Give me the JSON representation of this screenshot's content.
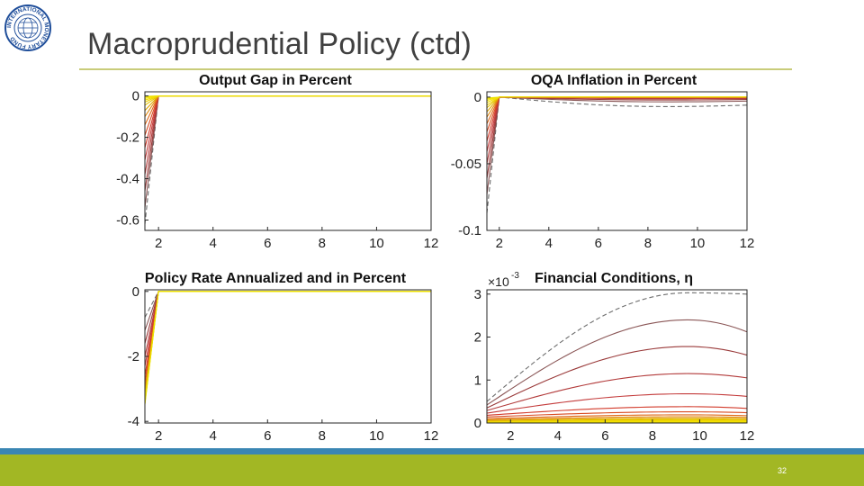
{
  "slide": {
    "title": "Macroprudential Policy (ctd)",
    "page_number": "32",
    "logo_text": "INTERNATIONAL MONETARY FUND",
    "colors": {
      "accent_rule": "#c9cc7a",
      "footer_blue": "#3a86b3",
      "footer_green": "#a2b724"
    }
  },
  "chart_data": [
    {
      "type": "line",
      "title": "Output Gap in Percent",
      "xlim": [
        1.5,
        12
      ],
      "ylim": [
        -0.65,
        0.02
      ],
      "xticks": [
        "2",
        "4",
        "6",
        "8",
        "10",
        "12"
      ],
      "yticks": [
        {
          "value": 0,
          "label": "0"
        },
        {
          "value": -0.2,
          "label": "-0.2"
        },
        {
          "value": -0.4,
          "label": "-0.4"
        },
        {
          "value": -0.6,
          "label": "-0.6"
        }
      ],
      "series_shape": "jump",
      "x_start": 1,
      "x_jump": 2,
      "series_start_values": [
        -0.62,
        -0.54,
        -0.46,
        -0.38,
        -0.31,
        -0.25,
        -0.19,
        -0.14,
        -0.1,
        -0.07,
        -0.045,
        -0.03,
        -0.02,
        -0.012,
        -0.006,
        -0.002
      ],
      "series_end_values": [
        0,
        0,
        0,
        0,
        0,
        0,
        0,
        0,
        0,
        0,
        0,
        0,
        0,
        0,
        0,
        0
      ],
      "series_colors": [
        "#6e6e6e",
        "#8a5656",
        "#9a3a3a",
        "#b23a3a",
        "#c43c3c",
        "#d23a2a",
        "#d84a20",
        "#de6a18",
        "#e08a10",
        "#e0a800",
        "#e4c400",
        "#eed000",
        "#f2dc00",
        "#f4e400",
        "#f0e000",
        "#ece000"
      ]
    },
    {
      "type": "line",
      "title": "OQA Inflation in Percent",
      "xlim": [
        1.5,
        12
      ],
      "ylim": [
        -0.1,
        0.004
      ],
      "xticks": [
        "2",
        "4",
        "6",
        "8",
        "10",
        "12"
      ],
      "yticks": [
        {
          "value": 0,
          "label": "0"
        },
        {
          "value": -0.05,
          "label": "-0.05"
        },
        {
          "value": -0.1,
          "label": "-0.1"
        }
      ],
      "series_shape": "jump",
      "x_start": 1,
      "x_jump": 2,
      "series_start_values": [
        -0.087,
        -0.073,
        -0.061,
        -0.05,
        -0.041,
        -0.033,
        -0.026,
        -0.02,
        -0.015,
        -0.011,
        -0.008,
        -0.006,
        -0.004,
        -0.0025,
        -0.0015,
        -0.0007
      ],
      "series_end_values": [
        -0.006,
        -0.003,
        -0.0018,
        -0.001,
        -0.0006,
        -0.0003,
        -0.0002,
        -0.0001,
        0,
        0,
        0,
        0,
        0,
        0,
        0,
        0
      ],
      "series_colors": [
        "#6e6e6e",
        "#8a5656",
        "#9a3a3a",
        "#b23a3a",
        "#c43c3c",
        "#d23a2a",
        "#d84a20",
        "#de6a18",
        "#e08a10",
        "#e0a800",
        "#e4c400",
        "#eed000",
        "#f2dc00",
        "#f4e400",
        "#f0e000",
        "#ece000"
      ]
    },
    {
      "type": "line",
      "title": "Policy Rate Annualized and in Percent",
      "xlim": [
        1.5,
        12
      ],
      "ylim": [
        -4.05,
        0.05
      ],
      "xticks": [
        "2",
        "4",
        "6",
        "8",
        "10",
        "12"
      ],
      "yticks": [
        {
          "value": 0,
          "label": "0"
        },
        {
          "value": -2,
          "label": "-2"
        },
        {
          "value": -4,
          "label": "-4"
        }
      ],
      "series_shape": "jump",
      "x_start": 1,
      "x_jump": 2,
      "series_start_values": [
        -0.8,
        -1.2,
        -1.6,
        -2.0,
        -2.3,
        -2.6,
        -2.8,
        -3.0,
        -3.1,
        -3.2,
        -3.3,
        -3.35,
        -3.4,
        -3.42,
        -3.45,
        -3.48
      ],
      "series_end_values": [
        0,
        0,
        0,
        0,
        0,
        0,
        0,
        0,
        0,
        0,
        0,
        0,
        0,
        0,
        0,
        0
      ],
      "series_colors": [
        "#6e6e6e",
        "#8a5656",
        "#9a3a3a",
        "#b23a3a",
        "#c43c3c",
        "#d23a2a",
        "#d84a20",
        "#de6a18",
        "#e08a10",
        "#e0a800",
        "#e4c400",
        "#eed000",
        "#f2dc00",
        "#f4e400",
        "#f0e000",
        "#ece000"
      ]
    },
    {
      "type": "line",
      "title": "Financial Conditions, η",
      "exponent_base": "×10",
      "exponent_power": "-3",
      "xlim": [
        1,
        12
      ],
      "ylim": [
        0,
        3.1
      ],
      "xticks": [
        "2",
        "4",
        "6",
        "8",
        "10",
        "12"
      ],
      "yticks": [
        {
          "value": 3,
          "label": "3"
        },
        {
          "value": 2,
          "label": "2"
        },
        {
          "value": 1,
          "label": "1"
        },
        {
          "value": 0,
          "label": "0"
        }
      ],
      "series_shape": "hump",
      "peak_x": 9.5,
      "series_start_values": [
        0.5,
        0.42,
        0.35,
        0.29,
        0.23,
        0.18,
        0.14,
        0.1,
        0.075,
        0.055,
        0.04,
        0.03,
        0.02,
        0.012,
        0.006,
        0.002
      ],
      "series_peak_values": [
        3.03,
        2.4,
        1.78,
        1.15,
        0.68,
        0.38,
        0.26,
        0.19,
        0.145,
        0.11,
        0.085,
        0.065,
        0.045,
        0.03,
        0.016,
        0.006
      ],
      "series_end_values": [
        3.0,
        2.12,
        1.58,
        1.05,
        0.62,
        0.34,
        0.24,
        0.17,
        0.13,
        0.1,
        0.075,
        0.055,
        0.04,
        0.025,
        0.013,
        0.005
      ],
      "series_colors": [
        "#6e6e6e",
        "#8a5656",
        "#9a3a3a",
        "#b23a3a",
        "#c43c3c",
        "#d23a2a",
        "#d84a20",
        "#de6a18",
        "#e08a10",
        "#e0a800",
        "#e4c400",
        "#eed000",
        "#f2dc00",
        "#f4e400",
        "#f0e000",
        "#ece000"
      ]
    }
  ]
}
